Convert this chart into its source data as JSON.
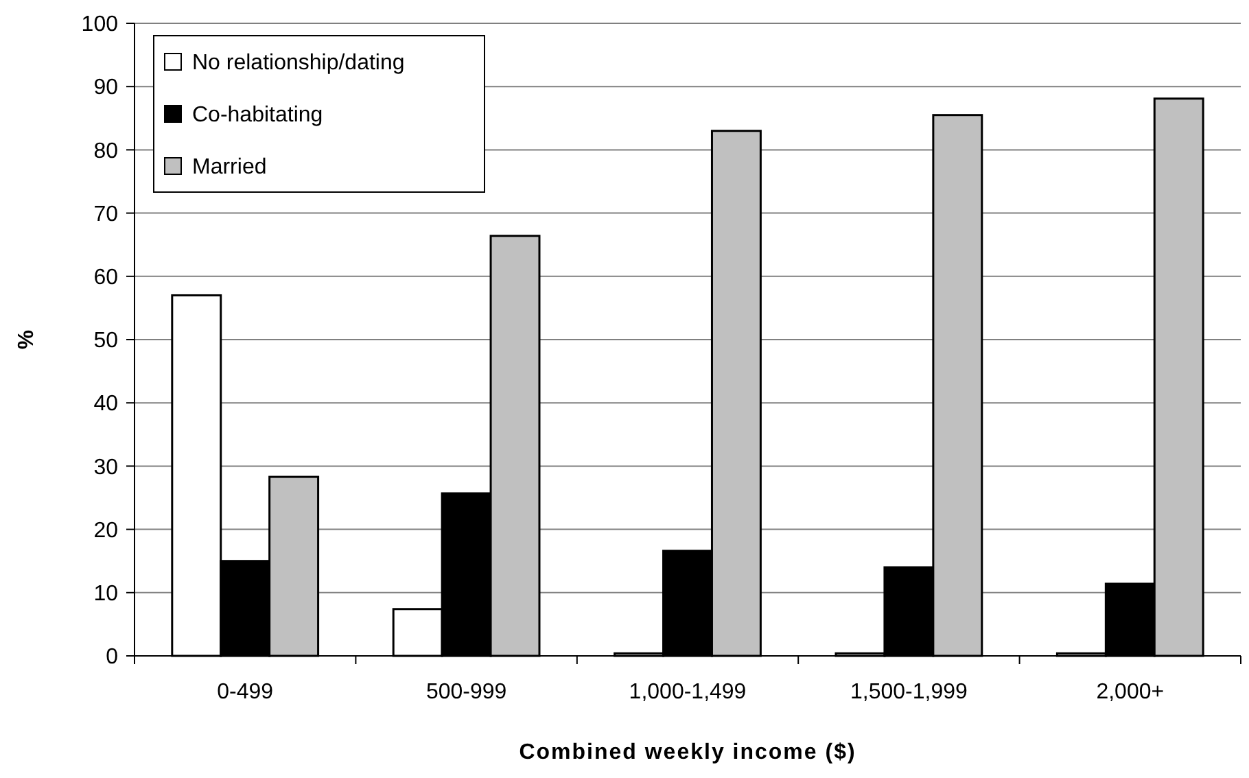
{
  "chart_data": {
    "type": "bar",
    "categories": [
      "0-499",
      "500-999",
      "1,000-1,499",
      "1,500-1,999",
      "2,000+"
    ],
    "series": [
      {
        "name": "No relationship/dating",
        "color": "#ffffff",
        "values": [
          57,
          7.4,
          0.4,
          0.4,
          0.4
        ]
      },
      {
        "name": "Co-habitating",
        "color": "#000000",
        "values": [
          15,
          25.7,
          16.6,
          14,
          11.4
        ]
      },
      {
        "name": "Married",
        "color": "#c0c0c0",
        "values": [
          28.3,
          66.4,
          83,
          85.5,
          88.1
        ]
      }
    ],
    "ylim": [
      0,
      100
    ],
    "yticks": [
      0,
      10,
      20,
      30,
      40,
      50,
      60,
      70,
      80,
      90,
      100
    ],
    "ylabel": "%",
    "xlabel": "Combined weekly income ($)",
    "grid": "y",
    "legend": "top left"
  }
}
